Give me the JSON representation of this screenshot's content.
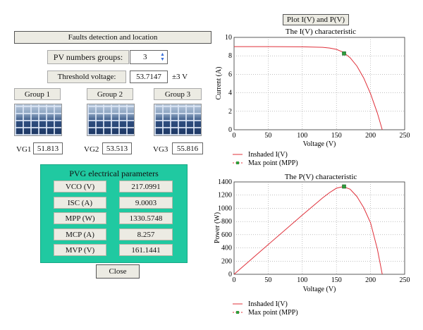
{
  "header": {
    "title": "Faults detection and location"
  },
  "pv_groups": {
    "label": "PV numbers groups:",
    "value": "3"
  },
  "threshold": {
    "label": "Threshold voltage:",
    "value": "53.7147",
    "tolerance": "±3 V"
  },
  "groups": [
    {
      "name": "Group 1",
      "vg_label": "VG1",
      "vg_value": "51.813"
    },
    {
      "name": "Group 2",
      "vg_label": "VG2",
      "vg_value": "53.513"
    },
    {
      "name": "Group 3",
      "vg_label": "VG3",
      "vg_value": "55.816"
    }
  ],
  "params": {
    "title": "PVG electrical parameters",
    "rows": [
      {
        "label": "VCO (V)",
        "value": "217.0991"
      },
      {
        "label": "ISC (A)",
        "value": "9.0003"
      },
      {
        "label": "MPP (W)",
        "value": "1330.5748"
      },
      {
        "label": "MCP (A)",
        "value": "8.257"
      },
      {
        "label": "MVP (V)",
        "value": "161.1441"
      }
    ]
  },
  "close_label": "Close",
  "plot_button": "Plot I(V) and P(V)",
  "colors": {
    "accent": "#20c9a1",
    "curve": "#e0303a",
    "mpp_marker": "#2f9e3c"
  },
  "chart_data": [
    {
      "type": "line",
      "title": "The I(V) characteristic",
      "xlabel": "Voltage (V)",
      "ylabel": "Current (A)",
      "xlim": [
        0,
        250
      ],
      "ylim": [
        0,
        10
      ],
      "xticks": [
        "0",
        "50",
        "100",
        "150",
        "200",
        "250"
      ],
      "yticks": [
        "0",
        "2",
        "4",
        "6",
        "8",
        "10"
      ],
      "grid": true,
      "legend_position": "below",
      "series": [
        {
          "name": "Inshaded I(V)",
          "x": [
            0,
            50,
            100,
            130,
            140,
            150,
            160,
            170,
            180,
            190,
            200,
            210,
            217.1
          ],
          "y": [
            9.0,
            9.0,
            8.98,
            8.92,
            8.85,
            8.7,
            8.4,
            7.8,
            6.9,
            5.6,
            3.9,
            1.8,
            0
          ]
        },
        {
          "name": "Max point (MPP)",
          "x": [
            161.1441
          ],
          "y": [
            8.257
          ]
        }
      ]
    },
    {
      "type": "line",
      "title": "The P(V) characteristic",
      "xlabel": "Voltage (V)",
      "ylabel": "Power (W)",
      "xlim": [
        0,
        250
      ],
      "ylim": [
        0,
        1400
      ],
      "xticks": [
        "0",
        "50",
        "100",
        "150",
        "200",
        "250"
      ],
      "yticks": [
        "0",
        "200",
        "400",
        "600",
        "800",
        "1000",
        "1200",
        "1400"
      ],
      "grid": true,
      "legend_position": "below",
      "series": [
        {
          "name": "Inshaded I(V)",
          "x": [
            0,
            50,
            100,
            130,
            140,
            150,
            160,
            170,
            180,
            190,
            200,
            210,
            217.1
          ],
          "y": [
            0,
            450,
            898,
            1160,
            1239,
            1305,
            1330,
            1290,
            1180,
            1010,
            780,
            380,
            0
          ]
        },
        {
          "name": "Max point (MPP)",
          "x": [
            161.1441
          ],
          "y": [
            1330.5748
          ]
        }
      ]
    }
  ]
}
